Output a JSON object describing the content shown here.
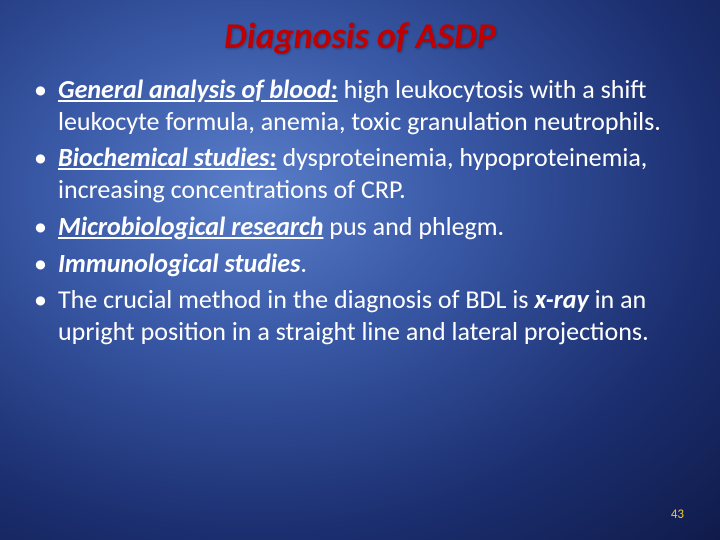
{
  "colors": {
    "title_color": "#c00000",
    "text_color": "#ffffff",
    "pagenum_color": "#f0c642"
  },
  "title": "Diagnosis of ASDP",
  "bullets": [
    {
      "lead": "General analysis of blood:",
      "lead_style": "bold-it-ul",
      "rest": " high leukocytosis with a shift leukocyte formula, anemia, toxic granulation neutrophils."
    },
    {
      "lead": "Biochemical studies:",
      "lead_style": "bold-it-ul",
      "rest": " dysproteinemia, hypoproteinemia, increasing concentrations of CRP."
    },
    {
      "lead": "Microbiological research",
      "lead_style": "bold-it-ul",
      "rest": " pus and phlegm."
    },
    {
      "lead": "Immunological studies",
      "lead_style": "bold-it",
      "rest": "."
    },
    {
      "pre": "The crucial method in the diagnosis of BDL is ",
      "lead": "x-ray",
      "lead_style": "bold-it",
      "rest": " in an upright position in a straight line and lateral projections."
    }
  ],
  "page_number": "43"
}
